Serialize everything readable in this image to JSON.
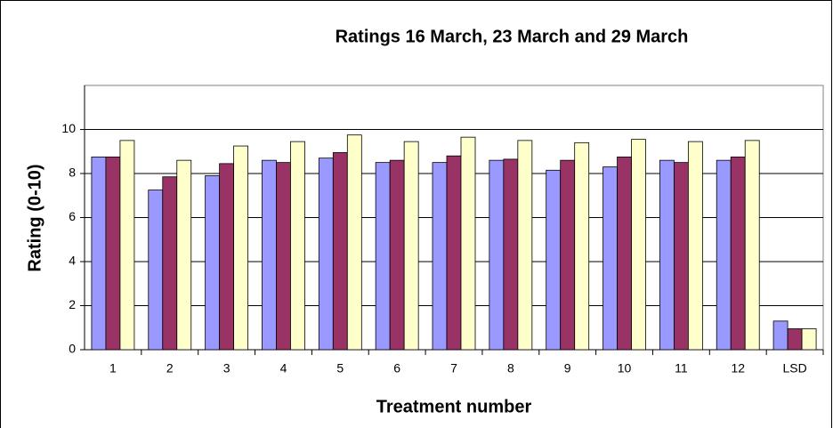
{
  "chart_data": {
    "type": "bar",
    "title": "Ratings 16 March, 23 March and 29 March",
    "x_label": "Treatment number",
    "y_label": "Rating (0-10)",
    "categories": [
      "1",
      "2",
      "3",
      "4",
      "5",
      "6",
      "7",
      "8",
      "9",
      "10",
      "11",
      "12",
      "LSD"
    ],
    "series": [
      {
        "color": "#9999ff",
        "values": [
          8.75,
          7.25,
          7.9,
          8.6,
          8.7,
          8.5,
          8.5,
          8.6,
          8.15,
          8.3,
          8.6,
          8.6,
          1.3
        ]
      },
      {
        "color": "#993366",
        "values": [
          8.75,
          7.85,
          8.45,
          8.5,
          8.95,
          8.6,
          8.8,
          8.65,
          8.6,
          8.75,
          8.5,
          8.75,
          0.95
        ]
      },
      {
        "color": "#ffffcc",
        "values": [
          9.5,
          8.6,
          9.25,
          9.45,
          9.75,
          9.45,
          9.65,
          9.5,
          9.4,
          9.55,
          9.45,
          9.5,
          0.95
        ]
      }
    ],
    "ylim": [
      0,
      12
    ],
    "yticks": [
      0,
      2,
      4,
      6,
      8,
      10
    ],
    "grid": true
  }
}
